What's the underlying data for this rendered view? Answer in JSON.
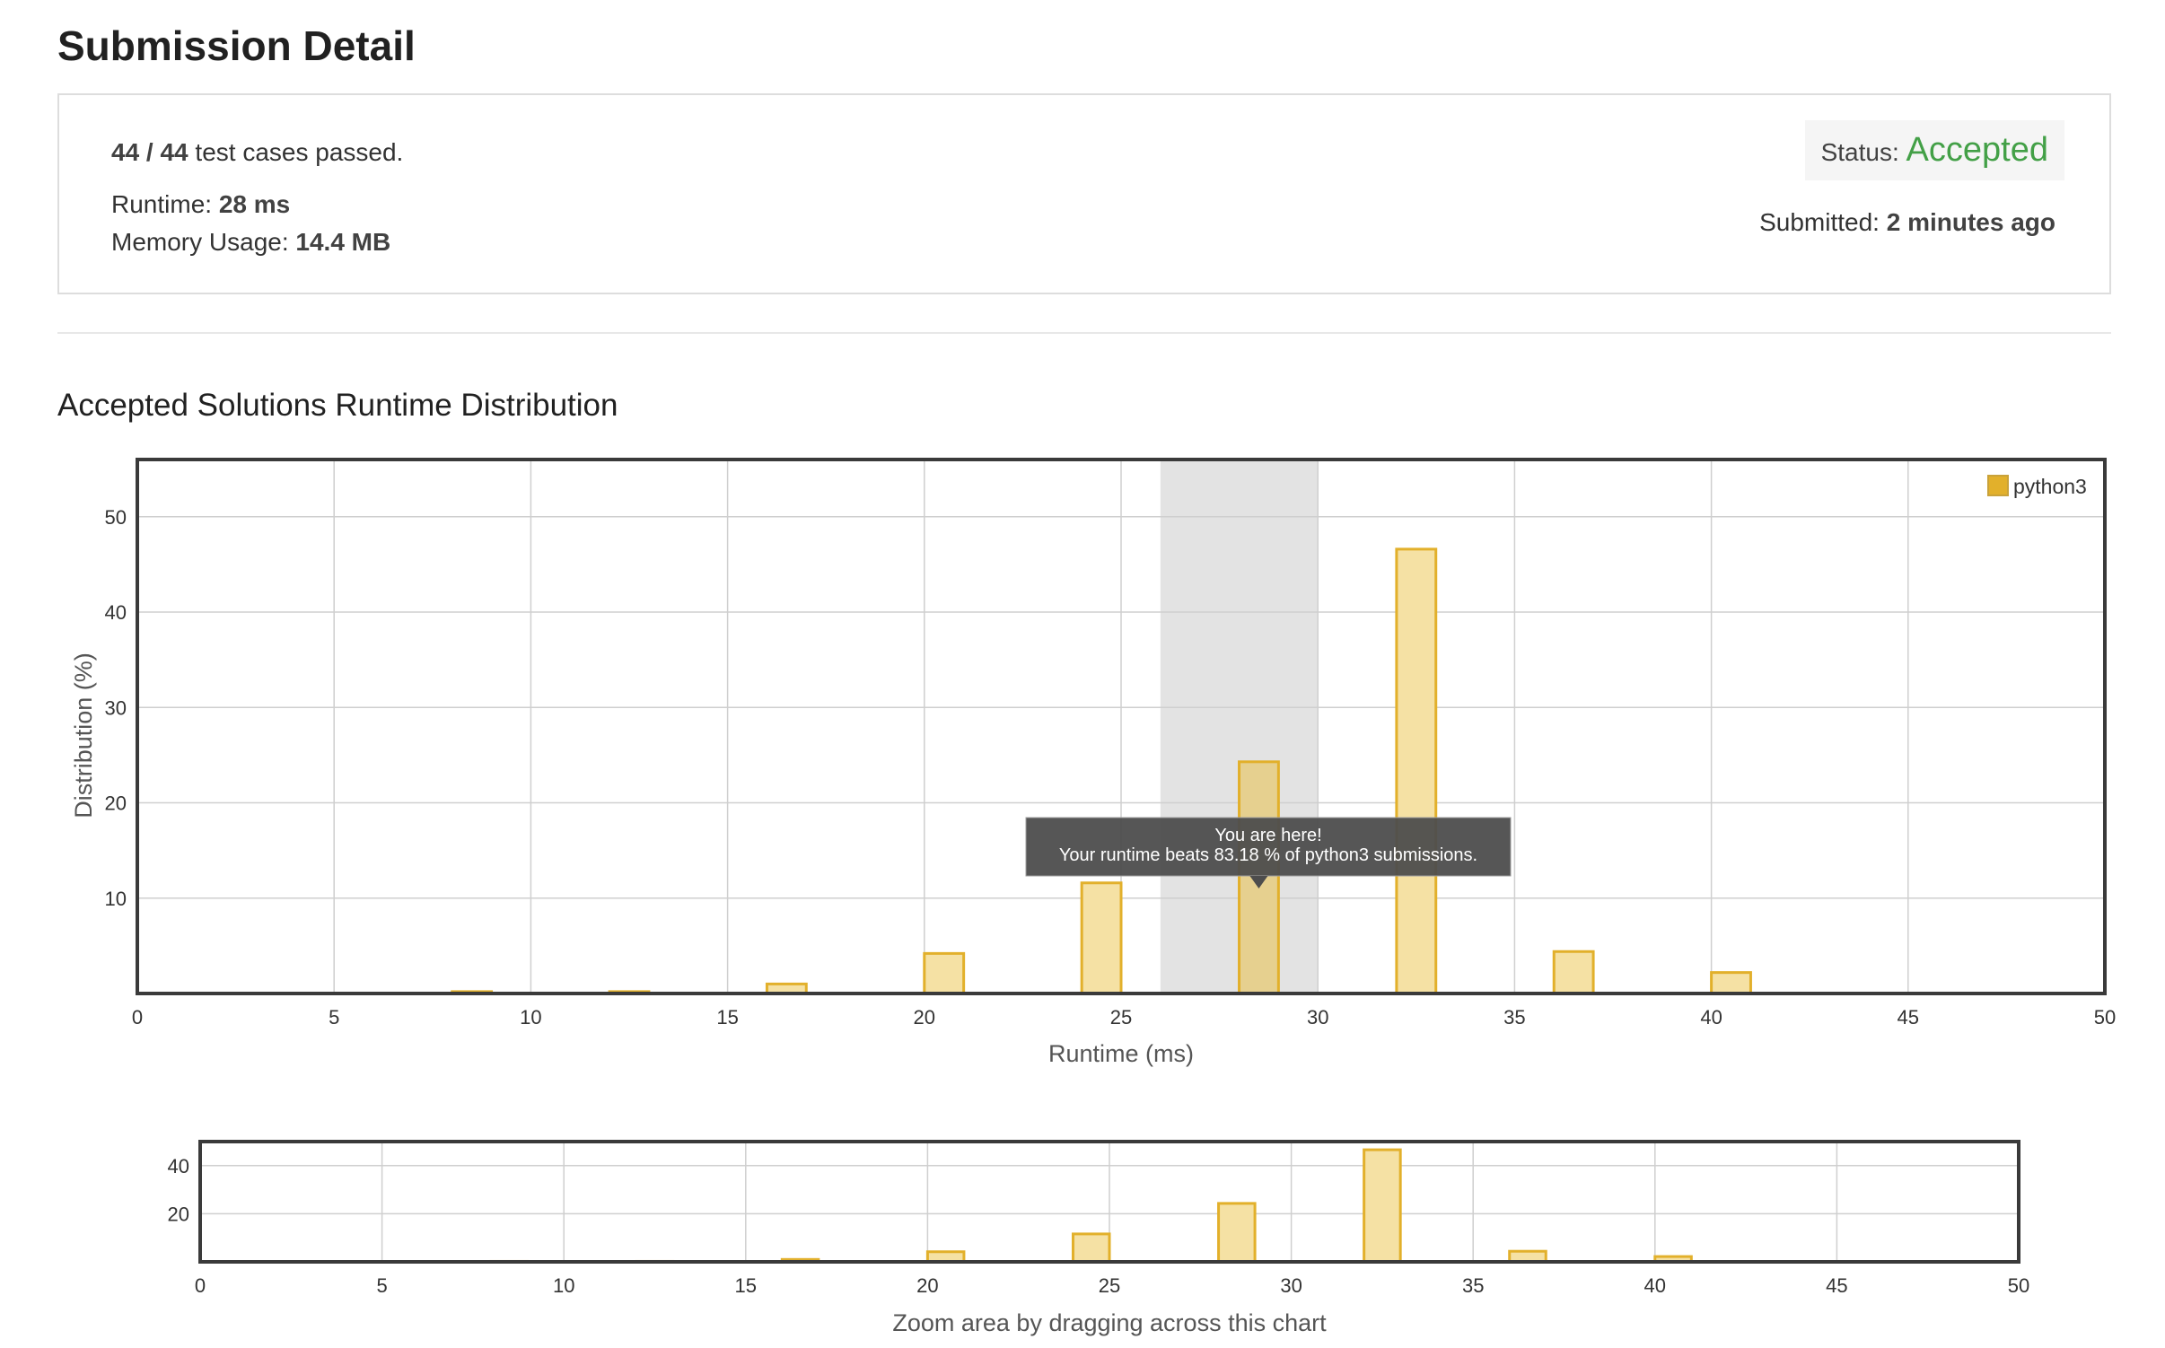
{
  "page_title": "Submission Detail",
  "summary": {
    "passed": "44 / 44",
    "passed_suffix": "test cases passed.",
    "runtime_label": "Runtime:",
    "runtime_value": "28 ms",
    "memory_label": "Memory Usage:",
    "memory_value": "14.4 MB",
    "status_label": "Status:",
    "status_value": "Accepted",
    "submitted_label": "Submitted:",
    "submitted_value": "2 minutes ago"
  },
  "section_title": "Accepted Solutions Runtime Distribution",
  "colors": {
    "bar_fill": "#f5e1a4",
    "bar_stroke": "#e2b02b",
    "highlight_fill": "#e6d08f",
    "status_green": "#43a047"
  },
  "tooltip": {
    "line1": "You are here!",
    "line2": "Your runtime beats 83.18 % of python3 submissions."
  },
  "chart_data": [
    {
      "type": "bar",
      "xlabel": "Runtime (ms)",
      "ylabel": "Distribution (%)",
      "xlim": [
        0,
        50
      ],
      "ylim": [
        0,
        56
      ],
      "xticks": [
        0,
        5,
        10,
        15,
        20,
        25,
        30,
        35,
        40,
        45,
        50
      ],
      "yticks": [
        10,
        20,
        30,
        40,
        50
      ],
      "grid": true,
      "legend_position": "top-right",
      "highlight_range": [
        26,
        30
      ],
      "series": [
        {
          "name": "python3",
          "x": [
            8.5,
            12.5,
            16.5,
            20.5,
            24.5,
            28.5,
            32.5,
            36.5,
            40.5
          ],
          "values": [
            0.2,
            0.2,
            1.0,
            4.2,
            11.6,
            24.3,
            46.6,
            4.4,
            2.2
          ]
        }
      ],
      "highlight_bar": 28.5
    },
    {
      "type": "bar",
      "xlabel": "Zoom area by dragging across this chart",
      "xlim": [
        0,
        50
      ],
      "ylim": [
        0,
        50
      ],
      "xticks": [
        0,
        5,
        10,
        15,
        20,
        25,
        30,
        35,
        40,
        45,
        50
      ],
      "yticks": [
        20,
        40
      ],
      "grid": true,
      "series": [
        {
          "x": [
            8.5,
            12.5,
            16.5,
            20.5,
            24.5,
            28.5,
            32.5,
            36.5,
            40.5
          ],
          "values": [
            0.2,
            0.2,
            1.0,
            4.2,
            11.6,
            24.3,
            46.6,
            4.4,
            2.2
          ]
        }
      ]
    }
  ]
}
